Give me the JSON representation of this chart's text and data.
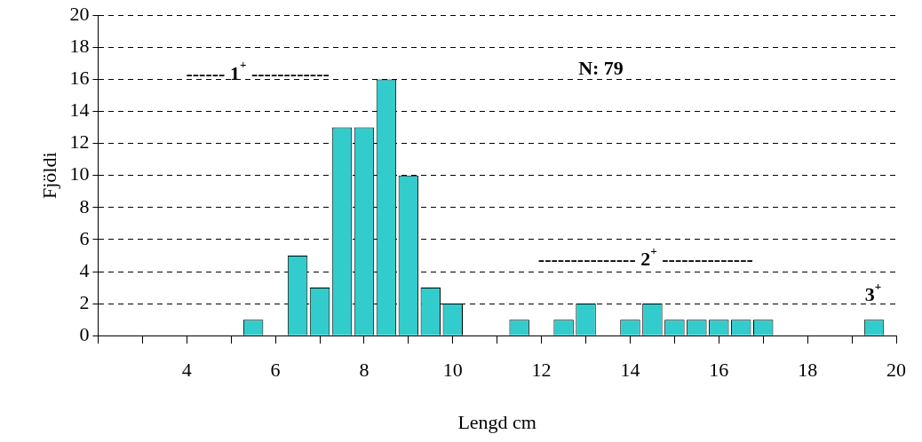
{
  "chart_data": {
    "type": "histogram",
    "xlabel": "Lengd cm",
    "ylabel": "Fjöldi",
    "bins": [
      5.25,
      5.75,
      6.25,
      6.75,
      7.25,
      7.75,
      8.25,
      8.75,
      9.25,
      9.75,
      10.25,
      10.75,
      11.25,
      11.75,
      12.25,
      12.75,
      13.25,
      13.75,
      14.25,
      14.75,
      15.25,
      15.75,
      16.25,
      16.75,
      17.25,
      17.75,
      18.25,
      18.75,
      19.25,
      19.75
    ],
    "values": [
      1,
      0,
      5,
      3,
      13,
      13,
      16,
      10,
      3,
      2,
      0,
      0,
      1,
      0,
      1,
      2,
      0,
      1,
      2,
      1,
      1,
      1,
      1,
      1,
      0,
      0,
      0,
      0,
      1
    ],
    "color": "#33cccc",
    "xlim": [
      2,
      20
    ],
    "xticks": [
      {
        "value": 2,
        "label": null
      },
      {
        "value": 3,
        "label": null
      },
      4,
      {
        "value": 5,
        "label": null
      },
      6,
      {
        "value": 7,
        "label": null
      },
      8,
      {
        "value": 9,
        "label": null
      },
      10,
      {
        "value": 11,
        "label": null
      },
      12,
      {
        "value": 13,
        "label": null
      },
      14,
      {
        "value": 15,
        "label": null
      },
      16,
      {
        "value": 17,
        "label": null
      },
      18,
      {
        "value": 19,
        "label": null
      },
      20
    ],
    "ylim": [
      0,
      20
    ],
    "yticks": [
      0,
      2,
      4,
      6,
      8,
      10,
      12,
      14,
      16,
      18,
      20
    ],
    "grid": "y",
    "legend": false,
    "annotations": [
      "------ 1$^{+}$ ------------",
      "N: 79",
      "--------------- 2$^{+}$ --------------",
      "3$^{+}$"
    ]
  }
}
